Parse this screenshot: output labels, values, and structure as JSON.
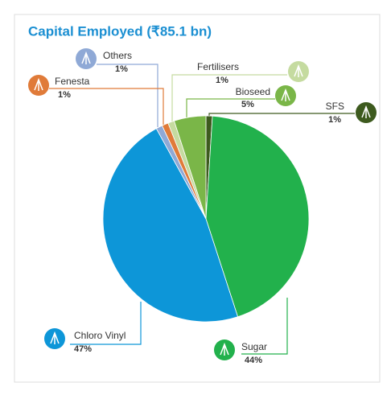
{
  "chart_data": {
    "type": "pie",
    "title": "Capital Employed (₹85.1 bn)",
    "categories": [
      "SFS",
      "Sugar",
      "Chloro Vinyl",
      "Others",
      "Fenesta",
      "Fertilisers",
      "Bioseed"
    ],
    "values": [
      1,
      44,
      47,
      1,
      1,
      1,
      5
    ],
    "value_labels": [
      "1%",
      "44%",
      "47%",
      "1%",
      "1%",
      "1%",
      "5%"
    ],
    "colors": [
      "#3d5a1e",
      "#22b14c",
      "#0d96d8",
      "#8fa9d6",
      "#e07b39",
      "#c5dba0",
      "#7ab648"
    ]
  }
}
